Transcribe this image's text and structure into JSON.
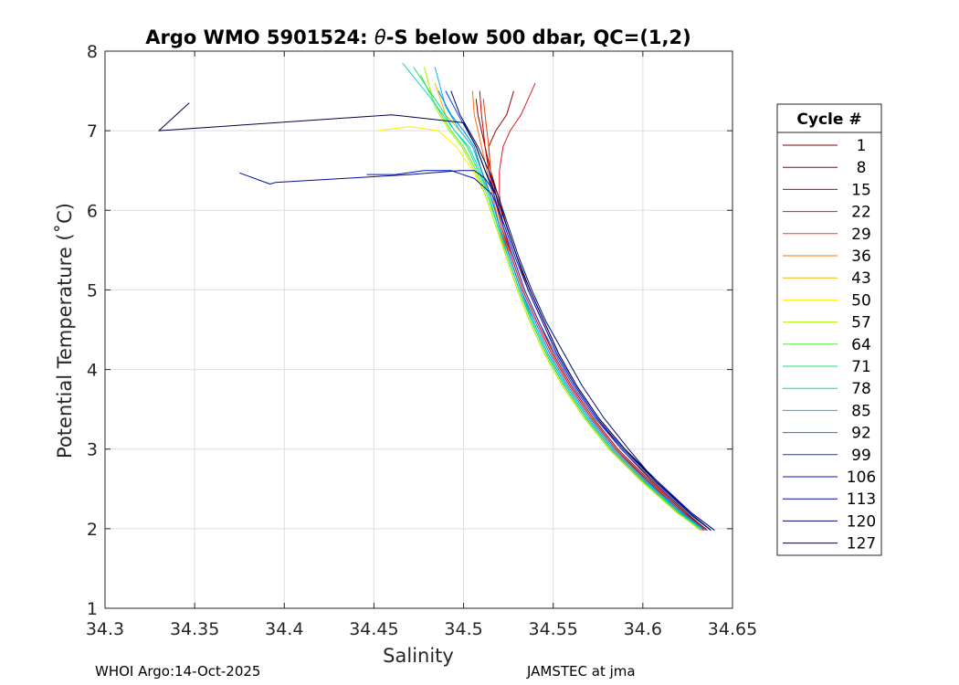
{
  "chart_data": {
    "type": "line",
    "title": "Argo WMO 5901524: θ-S below 500 dbar,  QC=(1,2)",
    "title_prefix": "Argo WMO 5901524: ",
    "title_theta": "θ",
    "title_suffix": "-S below 500 dbar,  QC=(1,2)",
    "xlabel": "Salinity",
    "ylabel": "Potential Temperature (˚C)",
    "xlim": [
      34.3,
      34.65
    ],
    "ylim": [
      1,
      8
    ],
    "xticks": [
      "34.3",
      "34.35",
      "34.4",
      "34.45",
      "34.5",
      "34.55",
      "34.6",
      "34.65"
    ],
    "yticks": [
      "1",
      "2",
      "3",
      "4",
      "5",
      "6",
      "7",
      "8"
    ],
    "grid": true,
    "legend_title": "Cycle #",
    "legend_position": "outside-right",
    "series": [
      {
        "name": "1",
        "color": "#800000",
        "x": [
          34.636,
          34.624,
          34.605,
          34.588,
          34.574,
          34.562,
          34.552,
          34.544,
          34.536,
          34.53,
          34.524,
          34.519,
          34.515,
          34.512,
          34.51,
          34.508,
          34.507
        ],
        "y": [
          1.98,
          2.2,
          2.6,
          3.0,
          3.4,
          3.8,
          4.2,
          4.6,
          5.0,
          5.4,
          5.8,
          6.2,
          6.5,
          6.8,
          7.0,
          7.2,
          7.4
        ]
      },
      {
        "name": "8",
        "color": "#a00000",
        "x": [
          34.635,
          34.623,
          34.604,
          34.586,
          34.572,
          34.56,
          34.55,
          34.542,
          34.534,
          34.528,
          34.522,
          34.518,
          34.515,
          34.514,
          34.518,
          34.524,
          34.528
        ],
        "y": [
          2.0,
          2.2,
          2.6,
          3.0,
          3.4,
          3.8,
          4.2,
          4.6,
          5.0,
          5.4,
          5.8,
          6.2,
          6.5,
          6.8,
          7.0,
          7.2,
          7.5
        ]
      },
      {
        "name": "15",
        "color": "#cc0000",
        "x": [
          34.634,
          34.622,
          34.603,
          34.585,
          34.571,
          34.559,
          34.549,
          34.541,
          34.533,
          34.527,
          34.521,
          34.517,
          34.514,
          34.512,
          34.511,
          34.51,
          34.509
        ],
        "y": [
          1.98,
          2.2,
          2.6,
          3.0,
          3.4,
          3.8,
          4.2,
          4.6,
          5.0,
          5.4,
          5.8,
          6.2,
          6.5,
          6.8,
          7.0,
          7.2,
          7.5
        ]
      },
      {
        "name": "22",
        "color": "#e31a1c",
        "x": [
          34.635,
          34.622,
          34.602,
          34.585,
          34.571,
          34.559,
          34.549,
          34.541,
          34.533,
          34.527,
          34.522,
          34.52,
          34.52,
          34.522,
          34.526,
          34.532,
          34.54
        ],
        "y": [
          1.99,
          2.2,
          2.6,
          3.0,
          3.4,
          3.8,
          4.2,
          4.6,
          5.0,
          5.4,
          5.8,
          6.2,
          6.5,
          6.8,
          7.0,
          7.2,
          7.6
        ]
      },
      {
        "name": "29",
        "color": "#f04000",
        "x": [
          34.633,
          34.621,
          34.601,
          34.583,
          34.569,
          34.557,
          34.547,
          34.539,
          34.532,
          34.526,
          34.521,
          34.517,
          34.515,
          34.514,
          34.513,
          34.512,
          34.511
        ],
        "y": [
          1.98,
          2.2,
          2.6,
          3.0,
          3.4,
          3.8,
          4.2,
          4.6,
          5.0,
          5.4,
          5.8,
          6.2,
          6.5,
          6.8,
          7.0,
          7.2,
          7.4
        ]
      },
      {
        "name": "36",
        "color": "#ff7000",
        "x": [
          34.632,
          34.62,
          34.6,
          34.582,
          34.568,
          34.556,
          34.546,
          34.538,
          34.531,
          34.525,
          34.52,
          34.516,
          34.513,
          34.51,
          34.508,
          34.506,
          34.505
        ],
        "y": [
          1.98,
          2.2,
          2.6,
          3.0,
          3.4,
          3.8,
          4.2,
          4.6,
          5.0,
          5.4,
          5.8,
          6.2,
          6.5,
          6.8,
          7.0,
          7.2,
          7.5
        ]
      },
      {
        "name": "43",
        "color": "#ffb000",
        "x": [
          34.632,
          34.619,
          34.599,
          34.581,
          34.567,
          34.555,
          34.545,
          34.537,
          34.53,
          34.524,
          34.519,
          34.514,
          34.51,
          34.505,
          34.498,
          34.49,
          34.484
        ],
        "y": [
          1.99,
          2.2,
          2.6,
          3.0,
          3.4,
          3.8,
          4.2,
          4.6,
          5.0,
          5.4,
          5.8,
          6.2,
          6.5,
          6.8,
          7.0,
          7.2,
          7.6
        ]
      },
      {
        "name": "50",
        "color": "#ffee00",
        "x": [
          34.632,
          34.619,
          34.599,
          34.581,
          34.567,
          34.555,
          34.545,
          34.537,
          34.53,
          34.524,
          34.518,
          34.512,
          34.505,
          34.496,
          34.486,
          34.47,
          34.452
        ],
        "y": [
          1.99,
          2.2,
          2.6,
          3.0,
          3.4,
          3.8,
          4.2,
          4.6,
          5.0,
          5.4,
          5.8,
          6.2,
          6.5,
          6.8,
          7.0,
          7.05,
          7.0
        ]
      },
      {
        "name": "57",
        "color": "#b0f000",
        "x": [
          34.632,
          34.619,
          34.599,
          34.581,
          34.567,
          34.555,
          34.545,
          34.537,
          34.53,
          34.524,
          34.518,
          34.512,
          34.506,
          34.499,
          34.492,
          34.484,
          34.478
        ],
        "y": [
          1.99,
          2.2,
          2.6,
          3.0,
          3.4,
          3.8,
          4.2,
          4.6,
          5.0,
          5.4,
          5.8,
          6.2,
          6.5,
          6.8,
          7.0,
          7.3,
          7.8
        ]
      },
      {
        "name": "64",
        "color": "#50f030",
        "x": [
          34.633,
          34.62,
          34.6,
          34.582,
          34.568,
          34.556,
          34.546,
          34.538,
          34.531,
          34.525,
          34.519,
          34.513,
          34.507,
          34.5,
          34.493,
          34.485,
          34.476
        ],
        "y": [
          1.99,
          2.2,
          2.6,
          3.0,
          3.4,
          3.8,
          4.2,
          4.6,
          5.0,
          5.4,
          5.8,
          6.2,
          6.5,
          6.8,
          7.0,
          7.3,
          7.7
        ]
      },
      {
        "name": "71",
        "color": "#10e070",
        "x": [
          34.633,
          34.62,
          34.6,
          34.582,
          34.568,
          34.556,
          34.546,
          34.538,
          34.531,
          34.525,
          34.519,
          34.514,
          34.508,
          34.502,
          34.495,
          34.487,
          34.472
        ],
        "y": [
          1.99,
          2.2,
          2.6,
          3.0,
          3.4,
          3.8,
          4.2,
          4.6,
          5.0,
          5.4,
          5.8,
          6.2,
          6.5,
          6.8,
          7.0,
          7.3,
          7.8
        ]
      },
      {
        "name": "78",
        "color": "#00e0c0",
        "x": [
          34.633,
          34.621,
          34.601,
          34.583,
          34.569,
          34.557,
          34.547,
          34.539,
          34.531,
          34.525,
          34.519,
          34.514,
          34.509,
          34.503,
          34.495,
          34.482,
          34.466
        ],
        "y": [
          1.99,
          2.2,
          2.6,
          3.0,
          3.4,
          3.8,
          4.2,
          4.6,
          5.0,
          5.4,
          5.8,
          6.2,
          6.5,
          6.8,
          7.0,
          7.4,
          7.85
        ]
      },
      {
        "name": "85",
        "color": "#00b8f0",
        "x": [
          34.634,
          34.621,
          34.601,
          34.583,
          34.569,
          34.557,
          34.547,
          34.539,
          34.532,
          34.526,
          34.52,
          34.515,
          34.51,
          34.505,
          34.498,
          34.49,
          34.484
        ],
        "y": [
          1.99,
          2.2,
          2.6,
          3.0,
          3.4,
          3.8,
          4.2,
          4.6,
          5.0,
          5.4,
          5.8,
          6.2,
          6.5,
          6.8,
          7.0,
          7.3,
          7.8
        ]
      },
      {
        "name": "92",
        "color": "#0080e0",
        "x": [
          34.635,
          34.622,
          34.602,
          34.584,
          34.57,
          34.558,
          34.548,
          34.54,
          34.532,
          34.526,
          34.52,
          34.515,
          34.51,
          34.506,
          34.5,
          34.493,
          34.486
        ],
        "y": [
          1.98,
          2.2,
          2.6,
          3.0,
          3.4,
          3.8,
          4.2,
          4.6,
          5.0,
          5.4,
          5.8,
          6.2,
          6.5,
          6.8,
          7.0,
          7.2,
          7.5
        ]
      },
      {
        "name": "99",
        "color": "#0040e0",
        "x": [
          34.638,
          34.625,
          34.606,
          34.588,
          34.573,
          34.561,
          34.551,
          34.542,
          34.534,
          34.528,
          34.522,
          34.517,
          34.512,
          34.507,
          34.502,
          34.497,
          34.49
        ],
        "y": [
          1.98,
          2.2,
          2.6,
          3.0,
          3.4,
          3.8,
          4.2,
          4.6,
          5.0,
          5.4,
          5.8,
          6.2,
          6.5,
          6.8,
          7.0,
          7.2,
          7.5
        ]
      },
      {
        "name": "106",
        "color": "#0010c8",
        "x": [
          34.64,
          34.627,
          34.607,
          34.589,
          34.574,
          34.562,
          34.552,
          34.544,
          34.536,
          34.529,
          34.523,
          34.516,
          34.506,
          34.493,
          34.478,
          34.462,
          34.446
        ],
        "y": [
          1.98,
          2.2,
          2.6,
          3.0,
          3.4,
          3.8,
          4.2,
          4.6,
          5.0,
          5.4,
          5.8,
          6.2,
          6.4,
          6.5,
          6.5,
          6.45,
          6.45
        ]
      },
      {
        "name": "113",
        "color": "#000c9a",
        "x": [
          34.64,
          34.627,
          34.608,
          34.59,
          34.575,
          34.563,
          34.553,
          34.545,
          34.537,
          34.53,
          34.524,
          34.518,
          34.512,
          34.506,
          34.498,
          34.47,
          34.395,
          34.392,
          34.375
        ],
        "y": [
          1.98,
          2.2,
          2.6,
          3.0,
          3.4,
          3.8,
          4.2,
          4.6,
          5.0,
          5.4,
          5.8,
          6.2,
          6.4,
          6.5,
          6.5,
          6.45,
          6.35,
          6.33,
          6.47
        ]
      },
      {
        "name": "120",
        "color": "#000a6e",
        "x": [
          34.638,
          34.626,
          34.607,
          34.592,
          34.578,
          34.566,
          34.556,
          34.546,
          34.538,
          34.531,
          34.525,
          34.519,
          34.514,
          34.508,
          34.503,
          34.498,
          34.493
        ],
        "y": [
          1.98,
          2.2,
          2.6,
          3.0,
          3.4,
          3.8,
          4.2,
          4.6,
          5.0,
          5.4,
          5.8,
          6.2,
          6.5,
          6.8,
          7.0,
          7.2,
          7.5
        ]
      },
      {
        "name": "127",
        "color": "#000040",
        "x": [
          34.638,
          34.626,
          34.607,
          34.59,
          34.575,
          34.563,
          34.553,
          34.545,
          34.537,
          34.53,
          34.524,
          34.518,
          34.512,
          34.507,
          34.5,
          34.46,
          34.33,
          34.347
        ],
        "y": [
          1.98,
          2.2,
          2.6,
          3.0,
          3.4,
          3.8,
          4.2,
          4.6,
          5.0,
          5.4,
          5.8,
          6.2,
          6.5,
          6.8,
          7.1,
          7.2,
          7.0,
          7.35
        ]
      }
    ]
  },
  "footer": {
    "left": "WHOI Argo:14-Oct-2025",
    "right": "JAMSTEC at jma"
  }
}
